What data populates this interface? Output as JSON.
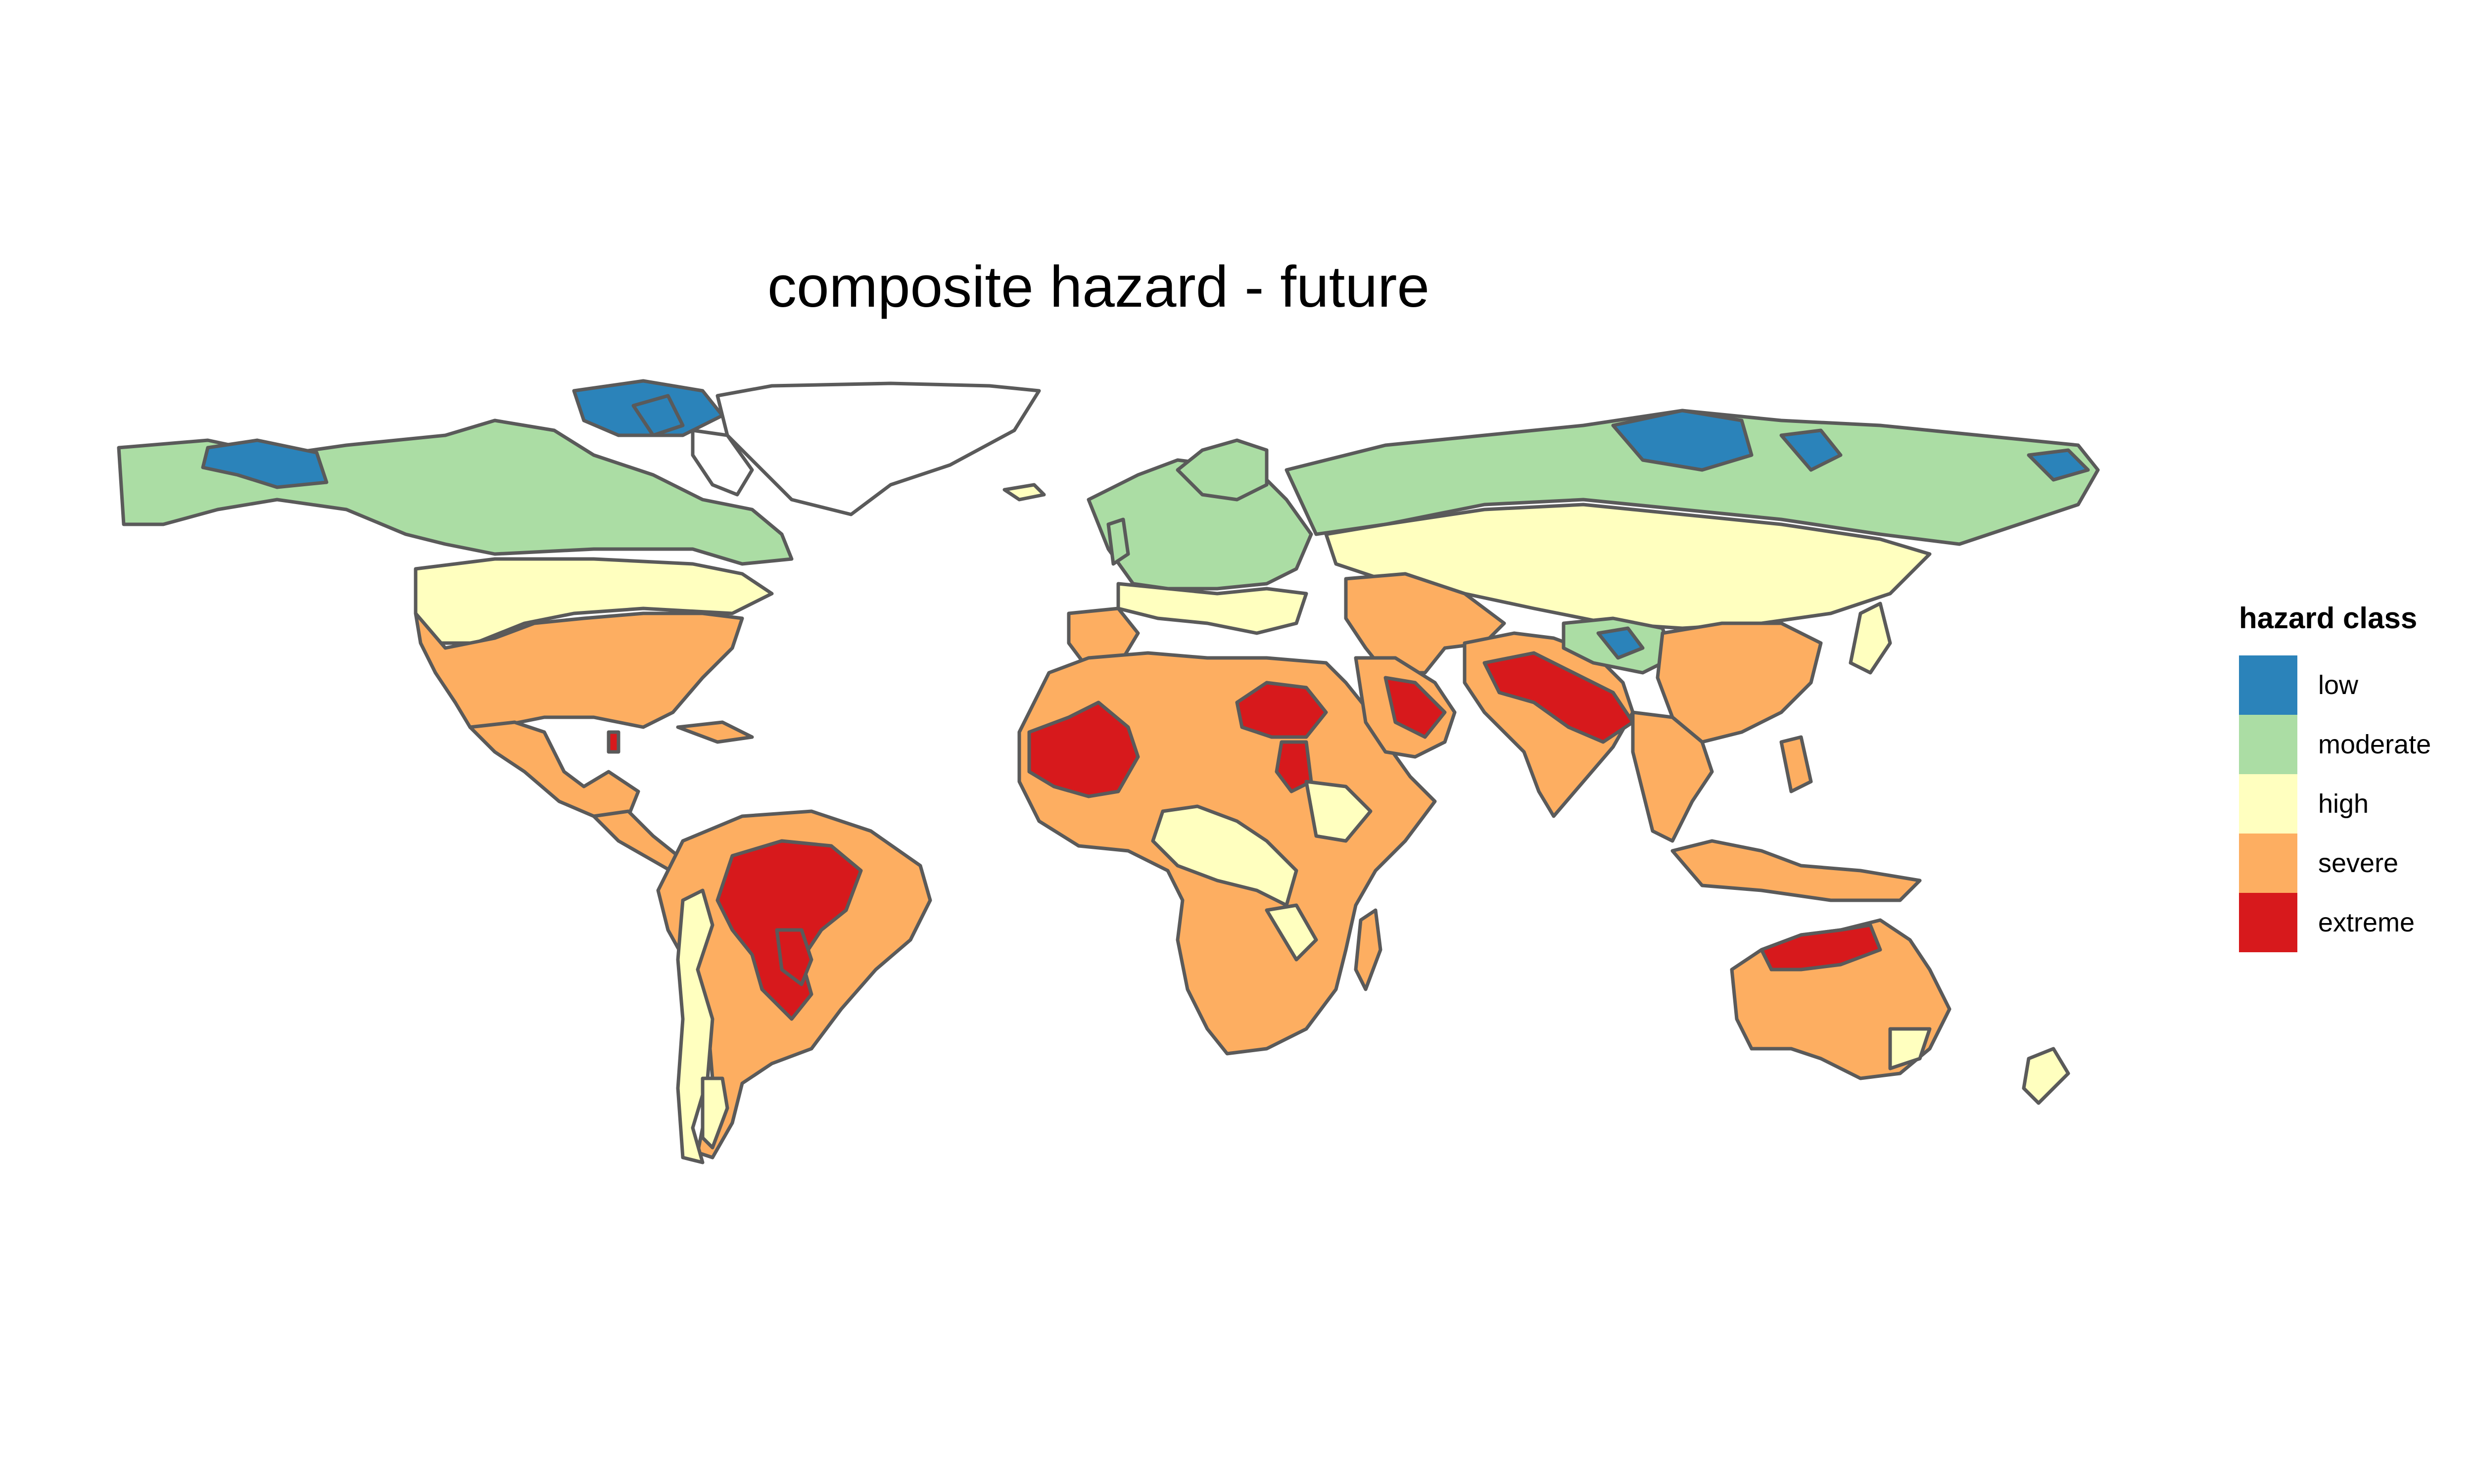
{
  "title": "composite hazard - future",
  "legend": {
    "title": "hazard class",
    "classes": [
      {
        "label": "low",
        "color": "#2b83ba"
      },
      {
        "label": "moderate",
        "color": "#abdda4"
      },
      {
        "label": "high",
        "color": "#ffffbf"
      },
      {
        "label": "severe",
        "color": "#fdae61"
      },
      {
        "label": "extreme",
        "color": "#d7191c"
      }
    ]
  },
  "colors": {
    "border": "#5a5a5a",
    "background": "#ffffff"
  }
}
